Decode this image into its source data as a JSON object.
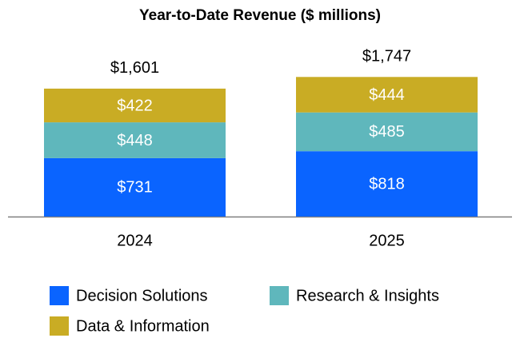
{
  "chart_data": {
    "type": "stacked-bar",
    "title": "Year-to-Date Revenue ($ millions)",
    "categories": [
      "2024",
      "2025"
    ],
    "series": [
      {
        "name": "Decision Solutions",
        "color": "#0a64ff",
        "values": [
          731,
          818
        ],
        "value_labels": [
          "$731",
          "$818"
        ]
      },
      {
        "name": "Research & Insights",
        "color": "#5fb7bc",
        "values": [
          448,
          485
        ],
        "value_labels": [
          "$448",
          "$485"
        ]
      },
      {
        "name": "Data & Information",
        "color": "#c9ac24",
        "values": [
          422,
          444
        ],
        "value_labels": [
          "$422",
          "$444"
        ]
      }
    ],
    "totals": [
      1601,
      1747
    ],
    "total_labels": [
      "$1,601",
      "$1,747"
    ]
  }
}
